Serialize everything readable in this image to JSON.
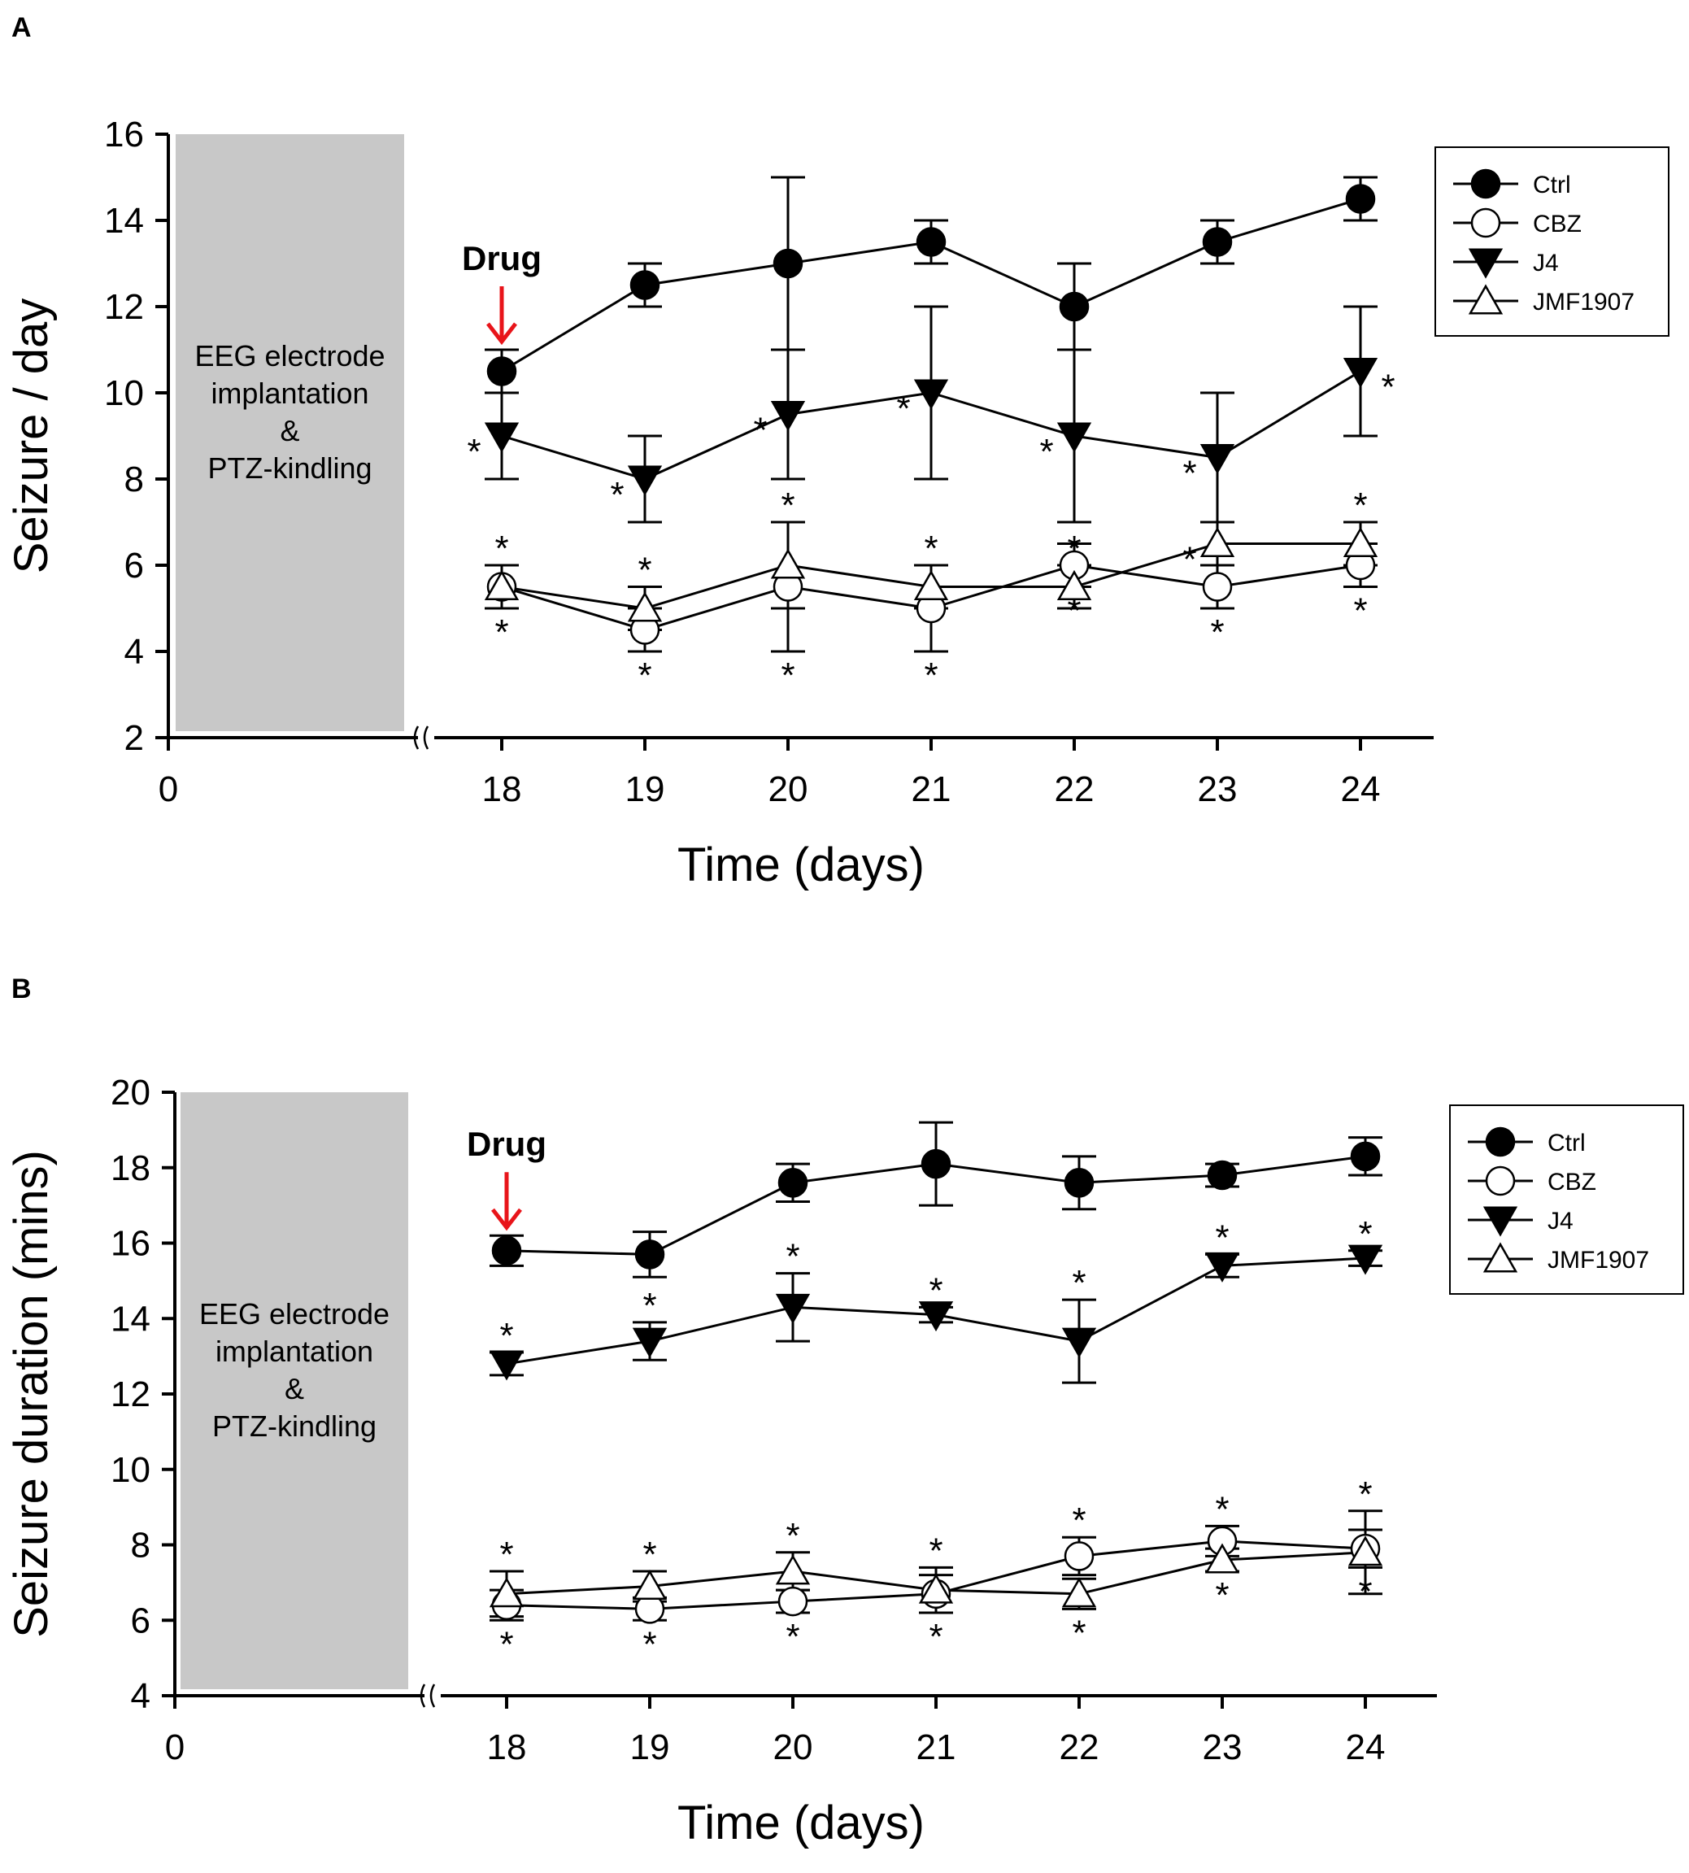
{
  "figure": {
    "arrow_color": "#e8141a",
    "phase_box_color": "#c8c8c8",
    "line_color": "#000000"
  },
  "chart_data": [
    {
      "panel": "A",
      "type": "line",
      "title": "",
      "ylabel": "Seizure / day",
      "xlabel": "Time (days)",
      "ylim": [
        2,
        16
      ],
      "yticks": [
        2,
        4,
        6,
        8,
        10,
        12,
        14,
        16
      ],
      "x_start_label": "0",
      "x": [
        18,
        19,
        20,
        21,
        22,
        23,
        24
      ],
      "axis_break": true,
      "legend_position": "top-right",
      "phase_label": [
        "EEG electrode",
        "implantation",
        "&",
        "PTZ-kindling"
      ],
      "drug_label": "Drug",
      "drug_at": 18,
      "series": [
        {
          "name": "Ctrl",
          "marker": "circle",
          "fill": "filled",
          "values": [
            10.5,
            12.5,
            13.0,
            13.5,
            12.0,
            13.5,
            14.5
          ],
          "error": [
            0.5,
            0.5,
            2.0,
            0.5,
            1.0,
            0.5,
            0.5
          ],
          "stars": []
        },
        {
          "name": "CBZ",
          "marker": "circle",
          "fill": "open",
          "values": [
            5.5,
            4.5,
            5.5,
            5.0,
            6.0,
            5.5,
            6.0
          ],
          "error": [
            0.5,
            0.5,
            1.5,
            1.0,
            0.5,
            0.5,
            0.5
          ],
          "stars": [
            {
              "i": 0,
              "pos": "below"
            },
            {
              "i": 1,
              "pos": "below"
            },
            {
              "i": 2,
              "pos": "below"
            },
            {
              "i": 3,
              "pos": "below"
            },
            {
              "i": 4,
              "pos": "below"
            },
            {
              "i": 5,
              "pos": "below"
            },
            {
              "i": 6,
              "pos": "below"
            }
          ]
        },
        {
          "name": "J4",
          "marker": "triangle-down",
          "fill": "filled",
          "values": [
            9.0,
            8.0,
            9.5,
            10.0,
            9.0,
            8.5,
            10.5
          ],
          "error": [
            1.0,
            1.0,
            1.5,
            2.0,
            2.0,
            1.5,
            1.5
          ],
          "stars": [
            {
              "i": 0,
              "pos": "left"
            },
            {
              "i": 1,
              "pos": "left"
            },
            {
              "i": 2,
              "pos": "left"
            },
            {
              "i": 3,
              "pos": "left"
            },
            {
              "i": 4,
              "pos": "left"
            },
            {
              "i": 5,
              "pos": "left"
            },
            {
              "i": 6,
              "pos": "right"
            }
          ]
        },
        {
          "name": "JMF1907",
          "marker": "triangle-up",
          "fill": "open",
          "values": [
            5.5,
            5.0,
            6.0,
            5.5,
            5.5,
            6.5,
            6.5
          ],
          "error": [
            0.5,
            0.5,
            1.0,
            0.5,
            0.5,
            0.5,
            0.5
          ],
          "stars": [
            {
              "i": 0,
              "pos": "above"
            },
            {
              "i": 1,
              "pos": "above"
            },
            {
              "i": 2,
              "pos": "above"
            },
            {
              "i": 3,
              "pos": "above"
            },
            {
              "i": 4,
              "pos": "above"
            },
            {
              "i": 5,
              "pos": "left"
            },
            {
              "i": 6,
              "pos": "above"
            }
          ]
        }
      ]
    },
    {
      "panel": "B",
      "type": "line",
      "title": "",
      "ylabel": "Seizure duration (mins)",
      "xlabel": "Time (days)",
      "ylim": [
        4,
        20
      ],
      "yticks": [
        4,
        6,
        8,
        10,
        12,
        14,
        16,
        18,
        20
      ],
      "x_start_label": "0",
      "x": [
        18,
        19,
        20,
        21,
        22,
        23,
        24
      ],
      "axis_break": true,
      "legend_position": "top-right",
      "phase_label": [
        "EEG electrode",
        "implantation",
        "&",
        "PTZ-kindling"
      ],
      "drug_label": "Drug",
      "drug_at": 18,
      "series": [
        {
          "name": "Ctrl",
          "marker": "circle",
          "fill": "filled",
          "values": [
            15.8,
            15.7,
            17.6,
            18.1,
            17.6,
            17.8,
            18.3
          ],
          "error": [
            0.4,
            0.6,
            0.5,
            1.1,
            0.7,
            0.3,
            0.5
          ],
          "stars": []
        },
        {
          "name": "CBZ",
          "marker": "circle",
          "fill": "open",
          "values": [
            6.4,
            6.3,
            6.5,
            6.7,
            7.7,
            8.1,
            7.9
          ],
          "error": [
            0.4,
            0.3,
            0.3,
            0.5,
            0.5,
            0.4,
            0.5
          ],
          "stars": [
            {
              "i": 0,
              "pos": "below"
            },
            {
              "i": 1,
              "pos": "below"
            },
            {
              "i": 2,
              "pos": "below"
            },
            {
              "i": 3,
              "pos": "below"
            },
            {
              "i": 4,
              "pos": "above"
            },
            {
              "i": 5,
              "pos": "above"
            },
            {
              "i": 6,
              "pos": "below"
            }
          ]
        },
        {
          "name": "J4",
          "marker": "triangle-down",
          "fill": "filled",
          "values": [
            12.8,
            13.4,
            14.3,
            14.1,
            13.4,
            15.4,
            15.6
          ],
          "error": [
            0.3,
            0.5,
            0.9,
            0.2,
            1.1,
            0.3,
            0.2
          ],
          "stars": [
            {
              "i": 0,
              "pos": "above"
            },
            {
              "i": 1,
              "pos": "above"
            },
            {
              "i": 2,
              "pos": "above"
            },
            {
              "i": 3,
              "pos": "above"
            },
            {
              "i": 4,
              "pos": "above"
            },
            {
              "i": 5,
              "pos": "above"
            },
            {
              "i": 6,
              "pos": "above"
            }
          ]
        },
        {
          "name": "JMF1907",
          "marker": "triangle-up",
          "fill": "open",
          "values": [
            6.7,
            6.9,
            7.3,
            6.8,
            6.7,
            7.6,
            7.8
          ],
          "error": [
            0.6,
            0.4,
            0.5,
            0.6,
            0.4,
            0.3,
            1.1
          ],
          "stars": [
            {
              "i": 0,
              "pos": "above"
            },
            {
              "i": 1,
              "pos": "above"
            },
            {
              "i": 2,
              "pos": "above"
            },
            {
              "i": 3,
              "pos": "above"
            },
            {
              "i": 4,
              "pos": "below"
            },
            {
              "i": 5,
              "pos": "below"
            },
            {
              "i": 6,
              "pos": "above"
            }
          ]
        }
      ]
    }
  ]
}
